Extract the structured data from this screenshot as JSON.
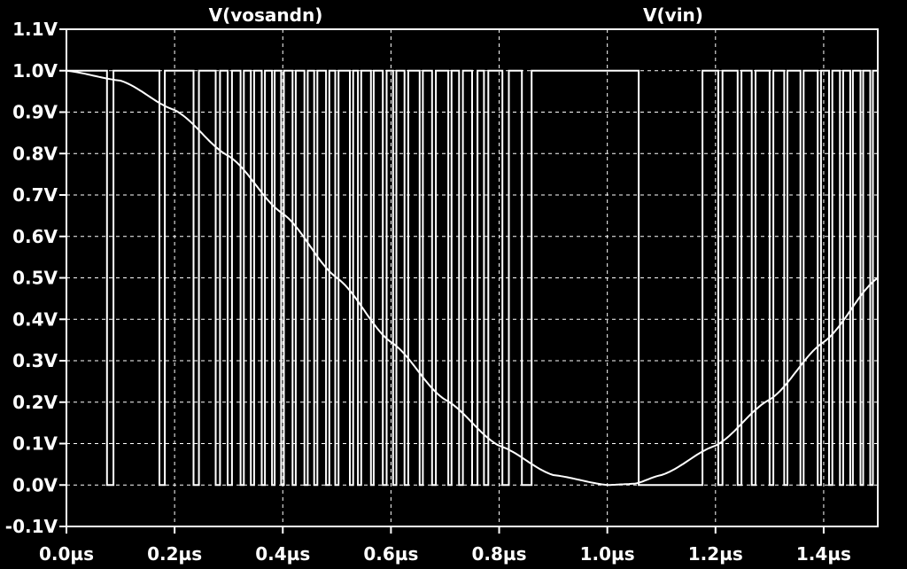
{
  "chart_data": {
    "type": "line",
    "background": "#000000",
    "foreground": "#ffffff",
    "grid": true,
    "grid_style": "dashed",
    "xlim": [
      0,
      1.5
    ],
    "ylim": [
      -0.1,
      1.1
    ],
    "x_ticks": [
      {
        "value": 0.0,
        "label": "0.0µs"
      },
      {
        "value": 0.2,
        "label": "0.2µs"
      },
      {
        "value": 0.4,
        "label": "0.4µs"
      },
      {
        "value": 0.6,
        "label": "0.6µs"
      },
      {
        "value": 0.8,
        "label": "0.8µs"
      },
      {
        "value": 1.0,
        "label": "1.0µs"
      },
      {
        "value": 1.2,
        "label": "1.2µs"
      },
      {
        "value": 1.4,
        "label": "1.4µs"
      }
    ],
    "y_ticks": [
      {
        "value": 1.1,
        "label": "1.1V"
      },
      {
        "value": 1.0,
        "label": "1.0V"
      },
      {
        "value": 0.9,
        "label": "0.9V"
      },
      {
        "value": 0.8,
        "label": "0.8V"
      },
      {
        "value": 0.7,
        "label": "0.7V"
      },
      {
        "value": 0.6,
        "label": "0.6V"
      },
      {
        "value": 0.5,
        "label": "0.5V"
      },
      {
        "value": 0.4,
        "label": "0.4V"
      },
      {
        "value": 0.3,
        "label": "0.3V"
      },
      {
        "value": 0.2,
        "label": "0.2V"
      },
      {
        "value": 0.1,
        "label": "0.1V"
      },
      {
        "value": 0.0,
        "label": "0.0V"
      },
      {
        "value": -0.1,
        "label": "-0.1V"
      }
    ],
    "series": [
      {
        "name": "V(vosandn)",
        "kind": "pulse",
        "high": 1.0,
        "low": 0.0,
        "low_intervals": [
          [
            0.075,
            0.087
          ],
          [
            0.172,
            0.182
          ],
          [
            0.235,
            0.245
          ],
          [
            0.276,
            0.284
          ],
          [
            0.298,
            0.306
          ],
          [
            0.322,
            0.328
          ],
          [
            0.341,
            0.347
          ],
          [
            0.361,
            0.367
          ],
          [
            0.38,
            0.385
          ],
          [
            0.397,
            0.402
          ],
          [
            0.418,
            0.424
          ],
          [
            0.44,
            0.446
          ],
          [
            0.458,
            0.464
          ],
          [
            0.48,
            0.486
          ],
          [
            0.497,
            0.503
          ],
          [
            0.524,
            0.53
          ],
          [
            0.539,
            0.545
          ],
          [
            0.563,
            0.568
          ],
          [
            0.585,
            0.592
          ],
          [
            0.604,
            0.61
          ],
          [
            0.625,
            0.632
          ],
          [
            0.653,
            0.659
          ],
          [
            0.676,
            0.683
          ],
          [
            0.706,
            0.712
          ],
          [
            0.726,
            0.733
          ],
          [
            0.75,
            0.76
          ],
          [
            0.772,
            0.78
          ],
          [
            0.806,
            0.818
          ],
          [
            0.842,
            0.86
          ],
          [
            1.058,
            1.176
          ],
          [
            1.205,
            1.213
          ],
          [
            1.241,
            1.248
          ],
          [
            1.267,
            1.274
          ],
          [
            1.3,
            1.307
          ],
          [
            1.327,
            1.333
          ],
          [
            1.357,
            1.363
          ],
          [
            1.389,
            1.395
          ],
          [
            1.41,
            1.416
          ],
          [
            1.43,
            1.436
          ],
          [
            1.449,
            1.454
          ],
          [
            1.468,
            1.473
          ],
          [
            1.486,
            1.491
          ]
        ]
      },
      {
        "name": "V(vin)",
        "kind": "function",
        "description_formula": "0.5*(1+cos(pi*t/1.0))",
        "x": [
          0.0,
          0.1,
          0.2,
          0.3,
          0.4,
          0.5,
          0.6,
          0.7,
          0.8,
          0.9,
          1.0,
          1.05,
          1.1,
          1.2,
          1.3,
          1.4,
          1.5
        ],
        "y": [
          1.0,
          0.976,
          0.905,
          0.794,
          0.655,
          0.5,
          0.345,
          0.206,
          0.095,
          0.024,
          0.0,
          0.003,
          0.024,
          0.095,
          0.206,
          0.345,
          0.5
        ]
      }
    ]
  }
}
